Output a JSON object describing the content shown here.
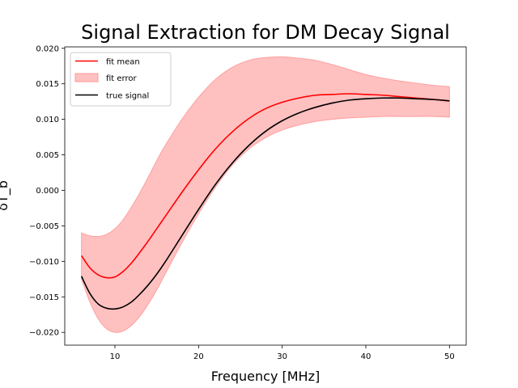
{
  "chart_data": {
    "type": "line",
    "title": "Signal Extraction for DM Decay Signal",
    "xlabel": "Frequency [MHz]",
    "ylabel": "δT_b",
    "xlim": [
      4,
      52
    ],
    "ylim": [
      -0.0218,
      0.0202
    ],
    "xticks": [
      10,
      20,
      30,
      40,
      50
    ],
    "yticks": [
      -0.02,
      -0.015,
      -0.01,
      -0.005,
      0.0,
      0.005,
      0.01,
      0.015,
      0.02
    ],
    "ytick_labels": [
      "−0.020",
      "−0.015",
      "−0.010",
      "−0.005",
      "0.000",
      "0.005",
      "0.010",
      "0.015",
      "0.020"
    ],
    "grid": false,
    "legend_position": "top-left",
    "x": [
      6,
      7,
      8,
      9,
      10,
      11,
      12,
      13,
      14,
      15,
      16,
      18,
      20,
      22,
      24,
      26,
      28,
      30,
      32,
      34,
      36,
      38,
      40,
      42,
      44,
      46,
      48,
      50
    ],
    "series": [
      {
        "name": "fit mean",
        "kind": "line",
        "color": "#ff0000",
        "values": [
          -0.0092,
          -0.0109,
          -0.0119,
          -0.0123,
          -0.0122,
          -0.0114,
          -0.0102,
          -0.0087,
          -0.0071,
          -0.0054,
          -0.0037,
          -0.0003,
          0.0029,
          0.0058,
          0.0082,
          0.0101,
          0.0115,
          0.0124,
          0.013,
          0.0134,
          0.0135,
          0.0136,
          0.0135,
          0.0134,
          0.0132,
          0.013,
          0.0128,
          0.0126
        ]
      },
      {
        "name": "fit error",
        "kind": "band",
        "color": "#ff9999",
        "upper": [
          -0.006,
          -0.0064,
          -0.0065,
          -0.0062,
          -0.0054,
          -0.0041,
          -0.0023,
          -0.0003,
          0.0019,
          0.0042,
          0.0063,
          0.01,
          0.0131,
          0.0156,
          0.0173,
          0.0183,
          0.0187,
          0.0188,
          0.0186,
          0.0183,
          0.0177,
          0.017,
          0.0163,
          0.0158,
          0.0154,
          0.0151,
          0.0148,
          0.0146
        ],
        "lower": [
          -0.0125,
          -0.0157,
          -0.0181,
          -0.0195,
          -0.02,
          -0.0198,
          -0.019,
          -0.0177,
          -0.016,
          -0.014,
          -0.0118,
          -0.0074,
          -0.0033,
          0.0004,
          0.0035,
          0.0058,
          0.0074,
          0.0085,
          0.0092,
          0.0097,
          0.01,
          0.0102,
          0.0103,
          0.0104,
          0.0104,
          0.0104,
          0.0104,
          0.0103
        ]
      },
      {
        "name": "true signal",
        "kind": "line",
        "color": "#000000",
        "values": [
          -0.0121,
          -0.0145,
          -0.016,
          -0.0166,
          -0.0167,
          -0.0164,
          -0.0157,
          -0.0146,
          -0.0133,
          -0.0118,
          -0.0101,
          -0.0064,
          -0.0027,
          0.0008,
          0.0038,
          0.0063,
          0.0083,
          0.0098,
          0.0109,
          0.0117,
          0.0123,
          0.0127,
          0.0129,
          0.013,
          0.013,
          0.0129,
          0.0128,
          0.0126
        ]
      }
    ]
  }
}
